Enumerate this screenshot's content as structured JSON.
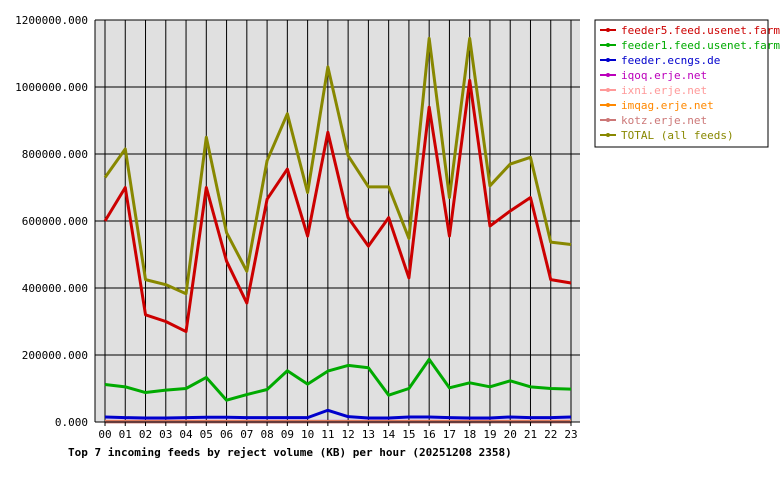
{
  "chart_data": {
    "type": "line",
    "title": "Top 7 incoming feeds by reject volume (KB) per hour (20251208 2358)",
    "xlabel": "",
    "ylabel": "",
    "categories": [
      "00",
      "01",
      "02",
      "03",
      "04",
      "05",
      "06",
      "07",
      "08",
      "09",
      "10",
      "11",
      "12",
      "13",
      "14",
      "15",
      "16",
      "17",
      "18",
      "19",
      "20",
      "21",
      "22",
      "23"
    ],
    "y_ticks": [
      "0.000",
      "200000.000",
      "400000.000",
      "600000.000",
      "800000.000",
      "1000000.000",
      "1200000.000"
    ],
    "ylim": [
      0,
      1200000
    ],
    "grid": true,
    "legend_position": "right",
    "series": [
      {
        "name": "feeder5.feed.usenet.farm",
        "color": "#cc0000",
        "values": [
          600000,
          700000,
          320000,
          300000,
          270000,
          700000,
          480000,
          355000,
          665000,
          755000,
          555000,
          865000,
          610000,
          525000,
          610000,
          430000,
          940000,
          555000,
          1020000,
          585000,
          630000,
          670000,
          425000,
          415000
        ]
      },
      {
        "name": "feeder1.feed.usenet.farm",
        "color": "#00aa00",
        "values": [
          112000,
          105000,
          88000,
          95000,
          100000,
          133000,
          65000,
          82000,
          97000,
          153000,
          113000,
          152000,
          169000,
          162000,
          80000,
          100000,
          187000,
          102000,
          117000,
          105000,
          123000,
          105000,
          100000,
          98000
        ]
      },
      {
        "name": "feeder.ecngs.de",
        "color": "#0000cc",
        "values": [
          15000,
          13000,
          12000,
          12000,
          13000,
          14000,
          14000,
          13000,
          13000,
          13000,
          13000,
          35000,
          16000,
          12000,
          12000,
          15000,
          15000,
          13000,
          12000,
          12000,
          15000,
          13000,
          13000,
          15000
        ]
      },
      {
        "name": "iqoq.erje.net",
        "color": "#bb00bb",
        "values": [
          2000,
          2000,
          2000,
          2000,
          2000,
          2000,
          2000,
          2000,
          2000,
          2000,
          2000,
          2000,
          2000,
          2000,
          2000,
          2000,
          2000,
          2000,
          2000,
          2000,
          2000,
          2000,
          2000,
          2000
        ]
      },
      {
        "name": "ixni.erje.net",
        "color": "#ff9999",
        "values": [
          1000,
          1000,
          1000,
          1000,
          1000,
          1000,
          1000,
          1000,
          1000,
          1000,
          1000,
          1000,
          1000,
          1000,
          1000,
          1000,
          1000,
          1000,
          1000,
          1000,
          1000,
          1000,
          1000,
          1000
        ]
      },
      {
        "name": "imqag.erje.net",
        "color": "#ff8800",
        "values": [
          1000,
          1000,
          1000,
          1000,
          1000,
          1000,
          1000,
          1000,
          1000,
          1000,
          1000,
          1000,
          1000,
          1000,
          1000,
          1000,
          1000,
          1000,
          1000,
          1000,
          1000,
          1000,
          1000,
          1000
        ]
      },
      {
        "name": "kotz.erje.net",
        "color": "#cc7777",
        "values": [
          500,
          500,
          500,
          500,
          500,
          500,
          500,
          500,
          500,
          500,
          500,
          500,
          500,
          500,
          500,
          500,
          500,
          500,
          500,
          500,
          500,
          500,
          500,
          500
        ]
      },
      {
        "name": "TOTAL (all feeds)",
        "color": "#888800",
        "values": [
          730000,
          815000,
          425000,
          410000,
          383000,
          850000,
          565000,
          450000,
          780000,
          920000,
          685000,
          1060000,
          795000,
          702000,
          702000,
          548000,
          1145000,
          670000,
          1145000,
          705000,
          770000,
          790000,
          537000,
          530000
        ]
      }
    ]
  }
}
